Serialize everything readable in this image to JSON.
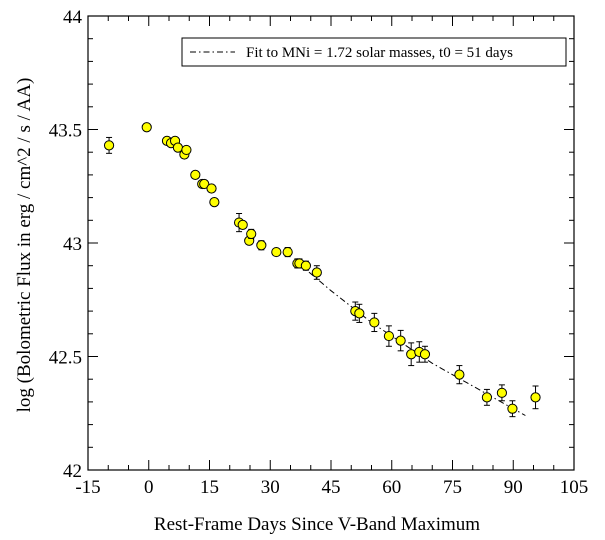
{
  "chart_data": {
    "type": "scatter",
    "title": "",
    "xlabel": "Rest-Frame Days Since V-Band Maximum",
    "ylabel": "log (Bolometric Flux in erg / cm^2 / s / AA)",
    "xlim": [
      -15,
      105
    ],
    "ylim": [
      42,
      44
    ],
    "x_ticks": [
      -15,
      0,
      15,
      30,
      45,
      60,
      75,
      90,
      105
    ],
    "y_ticks": [
      42,
      42.5,
      43,
      43.5,
      44
    ],
    "x_tick_labels": [
      "-15",
      "0",
      "15",
      "30",
      "45",
      "60",
      "75",
      "90",
      "105"
    ],
    "y_tick_labels": [
      "42",
      "42.5",
      "43",
      "43.5",
      "44"
    ],
    "grid": false,
    "legend_position": "top-right",
    "marker_color": "#ffff00",
    "series": [
      {
        "kind": "points",
        "x": [
          -9.8,
          -0.5,
          4.5,
          5.5,
          6.5,
          7.2,
          8.8,
          9.3,
          11.5,
          13.2,
          13.7,
          15.5,
          16.2,
          22.3,
          23.2,
          24.8,
          25.3,
          27.8,
          31.5,
          34.3,
          36.7,
          37.2,
          38.8,
          41.5,
          51.0,
          52.0,
          55.7,
          59.3,
          62.2,
          64.8,
          66.8,
          68.2,
          76.7,
          83.5,
          87.2,
          89.8,
          95.5
        ],
        "y": [
          43.43,
          43.51,
          43.45,
          43.44,
          43.45,
          43.42,
          43.39,
          43.41,
          43.3,
          43.26,
          43.26,
          43.24,
          43.18,
          43.09,
          43.08,
          43.01,
          43.04,
          42.99,
          42.96,
          42.96,
          42.91,
          42.91,
          42.9,
          42.87,
          42.7,
          42.69,
          42.65,
          42.59,
          42.57,
          42.51,
          42.52,
          42.51,
          42.42,
          42.32,
          42.34,
          42.27,
          42.32
        ],
        "yerr": [
          0.035,
          0.0,
          0.0,
          0.0,
          0.0,
          0.0,
          0.0,
          0.0,
          0.0,
          0.0,
          0.0,
          0.0,
          0.0,
          0.04,
          0.0,
          0.0,
          0.02,
          0.02,
          0.0,
          0.02,
          0.02,
          0.02,
          0.02,
          0.03,
          0.04,
          0.04,
          0.04,
          0.045,
          0.045,
          0.05,
          0.045,
          0.035,
          0.04,
          0.035,
          0.035,
          0.035,
          0.05
        ]
      },
      {
        "kind": "line",
        "name": "Fit to MNi = 1.72 solar masses, t0 = 51 days",
        "style": "dash-dot",
        "x": [
          37,
          41,
          45,
          50,
          55,
          60,
          65,
          70,
          75,
          80,
          85,
          88,
          93
        ],
        "y": [
          42.91,
          42.85,
          42.79,
          42.72,
          42.65,
          42.59,
          42.53,
          42.47,
          42.42,
          42.37,
          42.32,
          42.29,
          42.24
        ]
      }
    ]
  }
}
